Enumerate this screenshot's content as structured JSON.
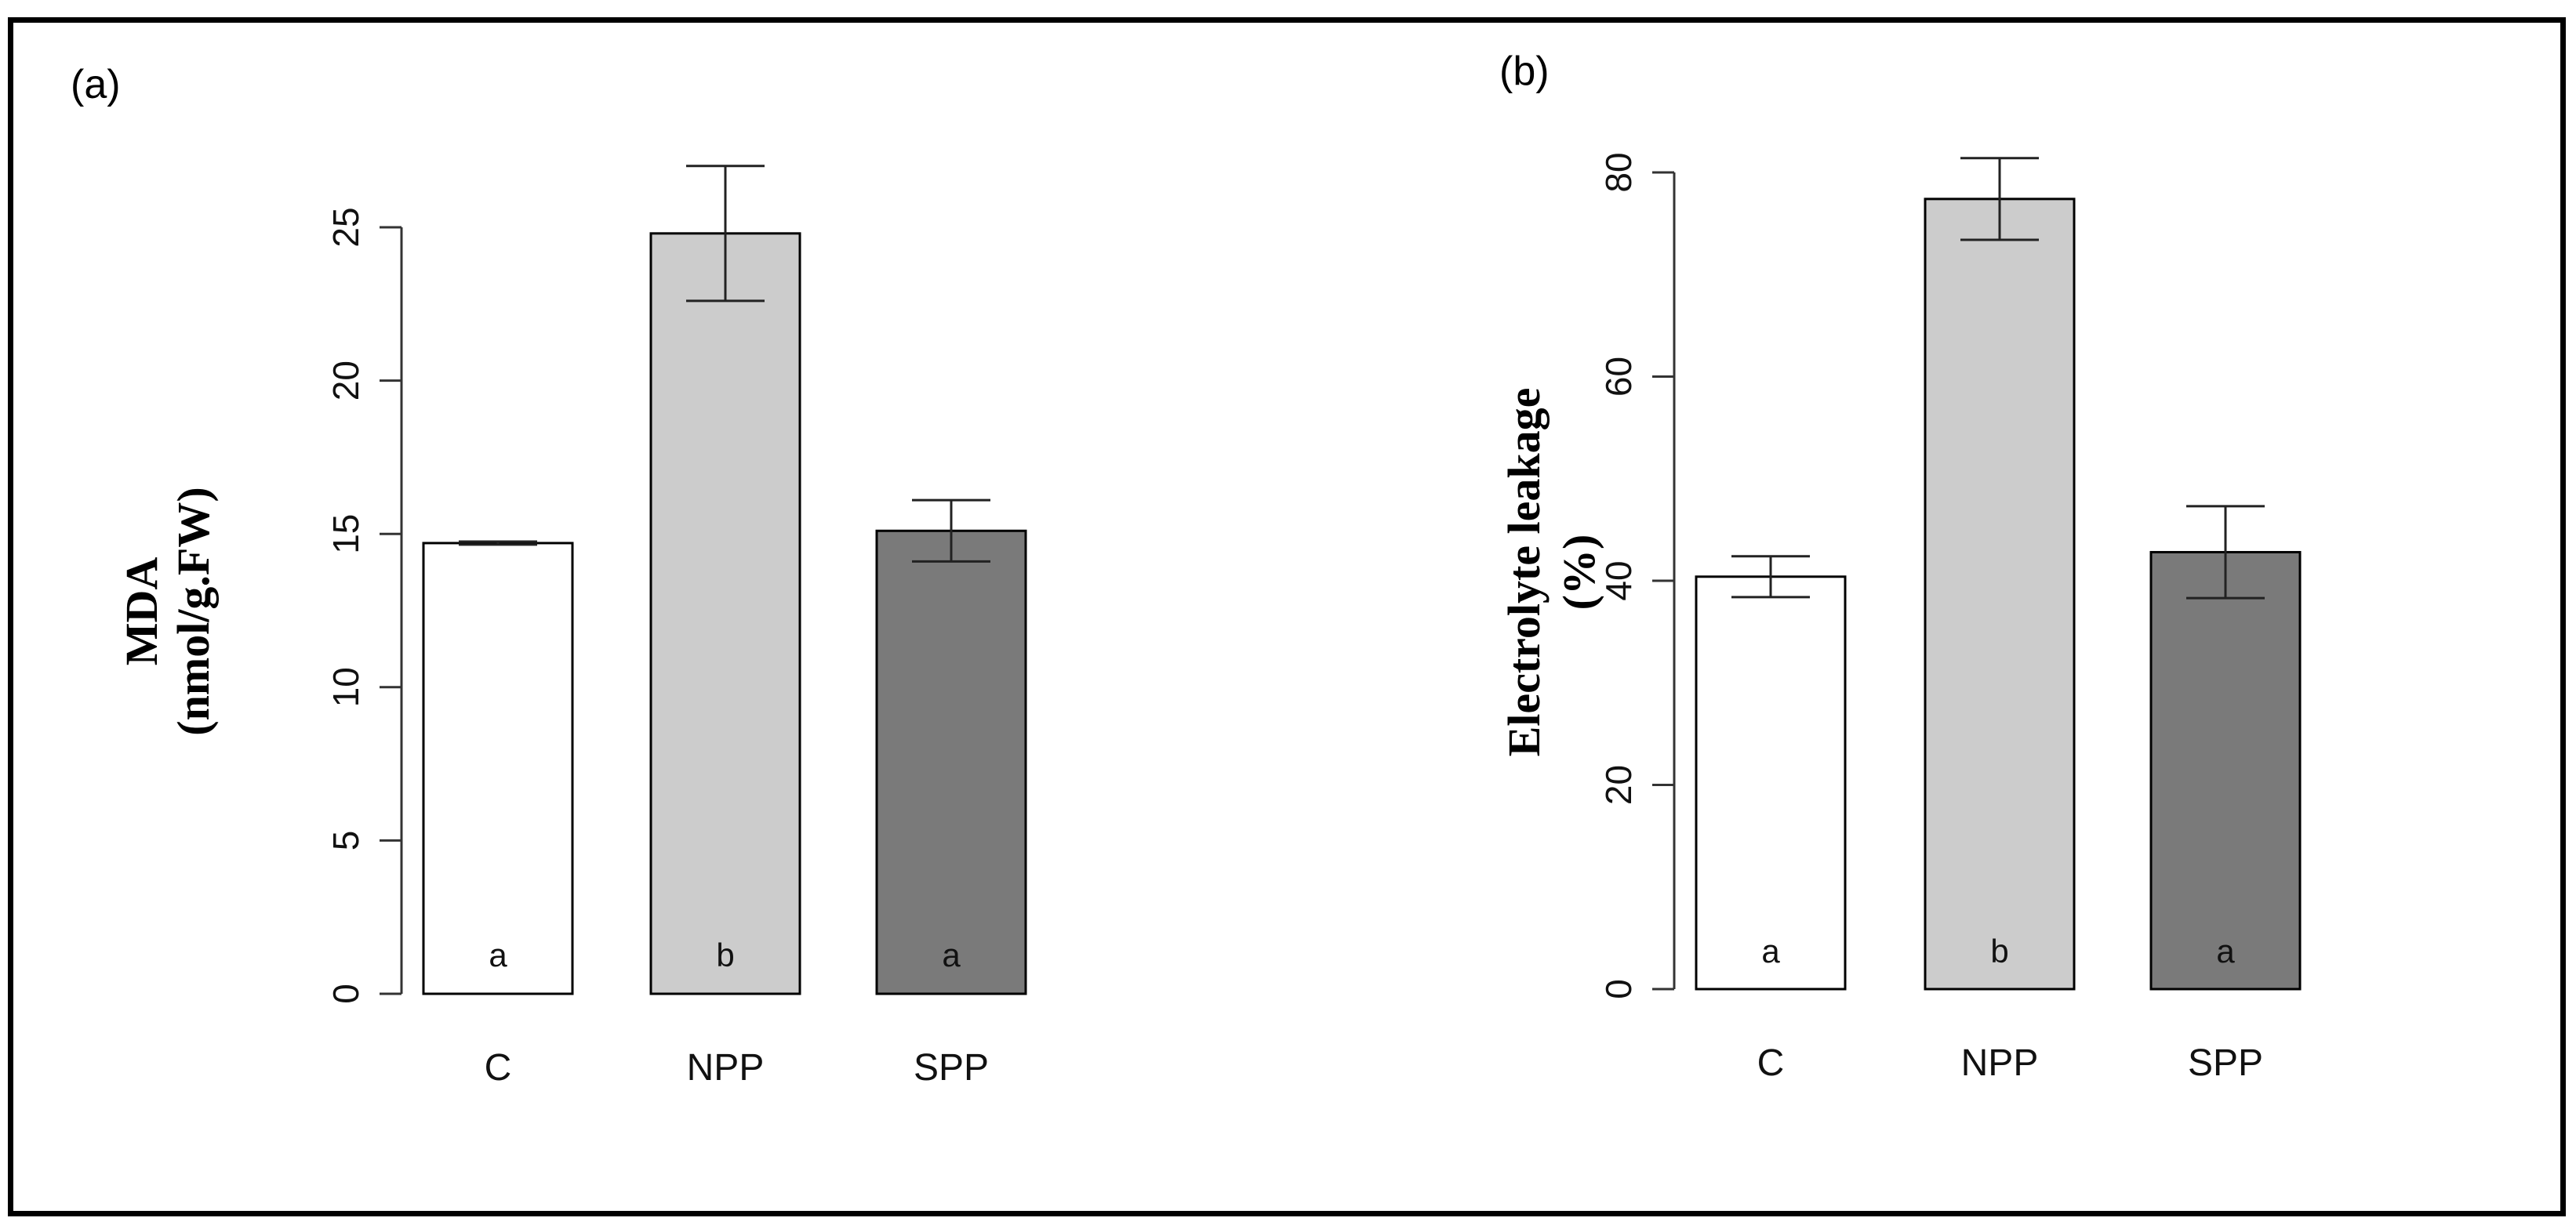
{
  "chart_data": [
    {
      "type": "bar",
      "panel_label": "(a)",
      "categories": [
        "C",
        "NPP",
        "SPP"
      ],
      "values": [
        14.7,
        24.8,
        15.1
      ],
      "errors": [
        0.05,
        2.2,
        1.0
      ],
      "significance_letters": [
        "a",
        "b",
        "a"
      ],
      "bar_colors": [
        "#ffffff",
        "#cccccc",
        "#7a7a7a"
      ],
      "ylabel_line1": "MDA",
      "ylabel_line2": "(nmol/g.FW)",
      "ylim": [
        0,
        25
      ],
      "yticks": [
        0,
        5,
        10,
        15,
        20,
        25
      ],
      "ytick_labels": [
        "0",
        "5",
        "10",
        "15",
        "20",
        "25"
      ]
    },
    {
      "type": "bar",
      "panel_label": "(b)",
      "categories": [
        "C",
        "NPP",
        "SPP"
      ],
      "values": [
        40.4,
        77.4,
        42.8
      ],
      "errors": [
        2.0,
        4.0,
        4.5
      ],
      "significance_letters": [
        "a",
        "b",
        "a"
      ],
      "bar_colors": [
        "#ffffff",
        "#cccccc",
        "#7a7a7a"
      ],
      "ylabel_line1": "Electrolyte leakage",
      "ylabel_line2": "(%)",
      "ylim": [
        0,
        80
      ],
      "yticks": [
        0,
        20,
        40,
        60,
        80
      ],
      "ytick_labels": [
        "0",
        "20",
        "40",
        "60",
        "80"
      ]
    }
  ]
}
